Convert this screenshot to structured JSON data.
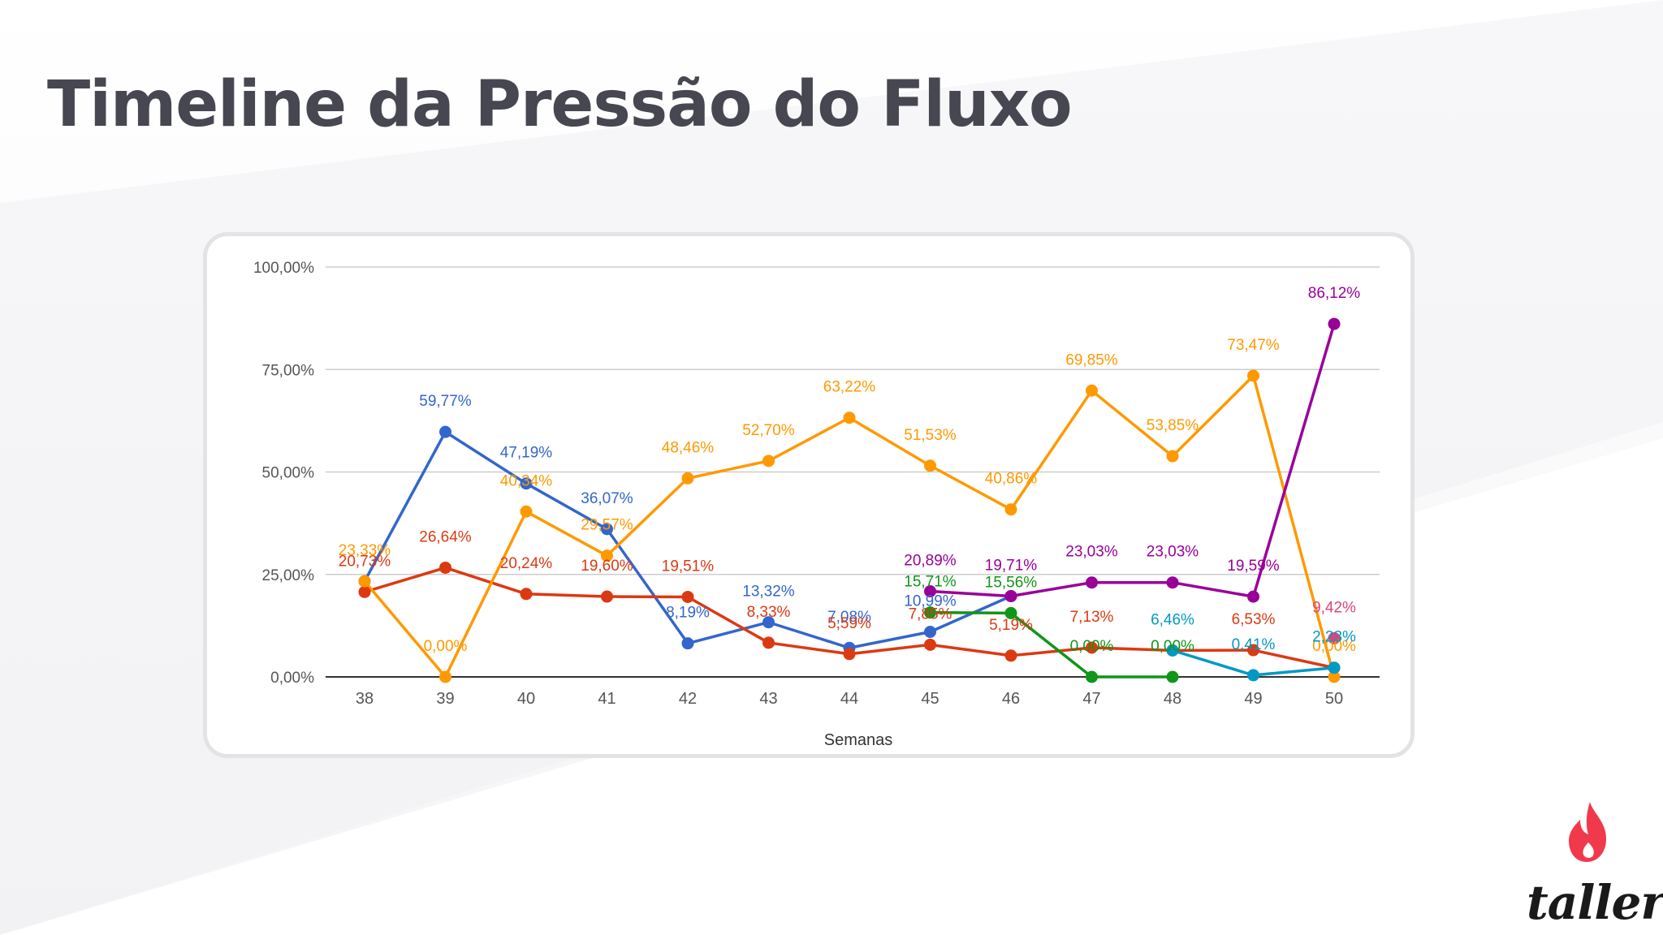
{
  "slide": {
    "title": "Timeline da Pressão do Fluxo",
    "brand": "taller",
    "brand_color": "#f03a4c"
  },
  "chart_data": {
    "type": "line",
    "xlabel": "Semanas",
    "ylabel": "",
    "ylim": [
      0,
      100
    ],
    "yticks": [
      "0,00%",
      "25,00%",
      "50,00%",
      "75,00%",
      "100,00%"
    ],
    "ytick_values": [
      0,
      25,
      50,
      75,
      100
    ],
    "categories": [
      "38",
      "39",
      "40",
      "41",
      "42",
      "43",
      "44",
      "45",
      "46",
      "47",
      "48",
      "49",
      "50"
    ],
    "grid": true,
    "legend": "none",
    "series": [
      {
        "color": "#3366cc",
        "values": [
          23.33,
          59.77,
          47.19,
          36.07,
          8.19,
          13.32,
          7.08,
          10.99,
          19.71,
          null,
          null,
          null,
          null
        ],
        "labels": [
          null,
          "59,77%",
          "47,19%",
          "36,07%",
          "8,19%",
          "13,32%",
          "7,08%",
          "10,99%",
          null,
          null,
          null,
          null,
          null
        ]
      },
      {
        "color": "#dc3912",
        "values": [
          20.73,
          26.64,
          20.24,
          19.6,
          19.51,
          8.33,
          5.59,
          7.85,
          5.19,
          7.13,
          6.46,
          6.53,
          2.23
        ],
        "labels": [
          "20,73%",
          "26,64%",
          "20,24%",
          "19,60%",
          "19,51%",
          "8,33%",
          "5,59%",
          "7,85%",
          "5,19%",
          "7,13%",
          null,
          "6,53%",
          null
        ]
      },
      {
        "color": "#ff9900",
        "values": [
          23.33,
          0.0,
          40.34,
          29.57,
          48.46,
          52.7,
          63.22,
          51.53,
          40.86,
          69.85,
          53.85,
          73.47,
          0.0
        ],
        "labels": [
          "23,33%",
          "0,00%",
          "40,34%",
          "29,57%",
          "48,46%",
          "52,70%",
          "63,22%",
          "51,53%",
          "40,86%",
          "69,85%",
          "53,85%",
          "73,47%",
          "0,00%"
        ]
      },
      {
        "color": "#109618",
        "values": [
          null,
          null,
          null,
          null,
          null,
          null,
          null,
          15.71,
          15.56,
          0.0,
          0.0,
          null,
          null
        ],
        "labels": [
          null,
          null,
          null,
          null,
          null,
          null,
          null,
          "15,71%",
          "15,56%",
          "0,00%",
          "0,00%",
          null,
          null
        ]
      },
      {
        "color": "#990099",
        "values": [
          null,
          null,
          null,
          null,
          null,
          null,
          null,
          20.89,
          19.71,
          23.03,
          23.03,
          19.59,
          86.12
        ],
        "labels": [
          null,
          null,
          null,
          null,
          null,
          null,
          null,
          "20,89%",
          "19,71%",
          "23,03%",
          "23,03%",
          "19,59%",
          "86,12%"
        ]
      },
      {
        "color": "#0099c6",
        "values": [
          null,
          null,
          null,
          null,
          null,
          null,
          null,
          null,
          null,
          null,
          6.46,
          0.41,
          2.23
        ],
        "labels": [
          null,
          null,
          null,
          null,
          null,
          null,
          null,
          null,
          null,
          null,
          "6,46%",
          "0,41%",
          "2,23%"
        ]
      },
      {
        "color": "#dd4477",
        "values": [
          null,
          null,
          null,
          null,
          null,
          null,
          null,
          null,
          null,
          null,
          null,
          null,
          9.42
        ],
        "labels": [
          null,
          null,
          null,
          null,
          null,
          null,
          null,
          null,
          null,
          null,
          null,
          null,
          "9,42%"
        ]
      }
    ]
  }
}
